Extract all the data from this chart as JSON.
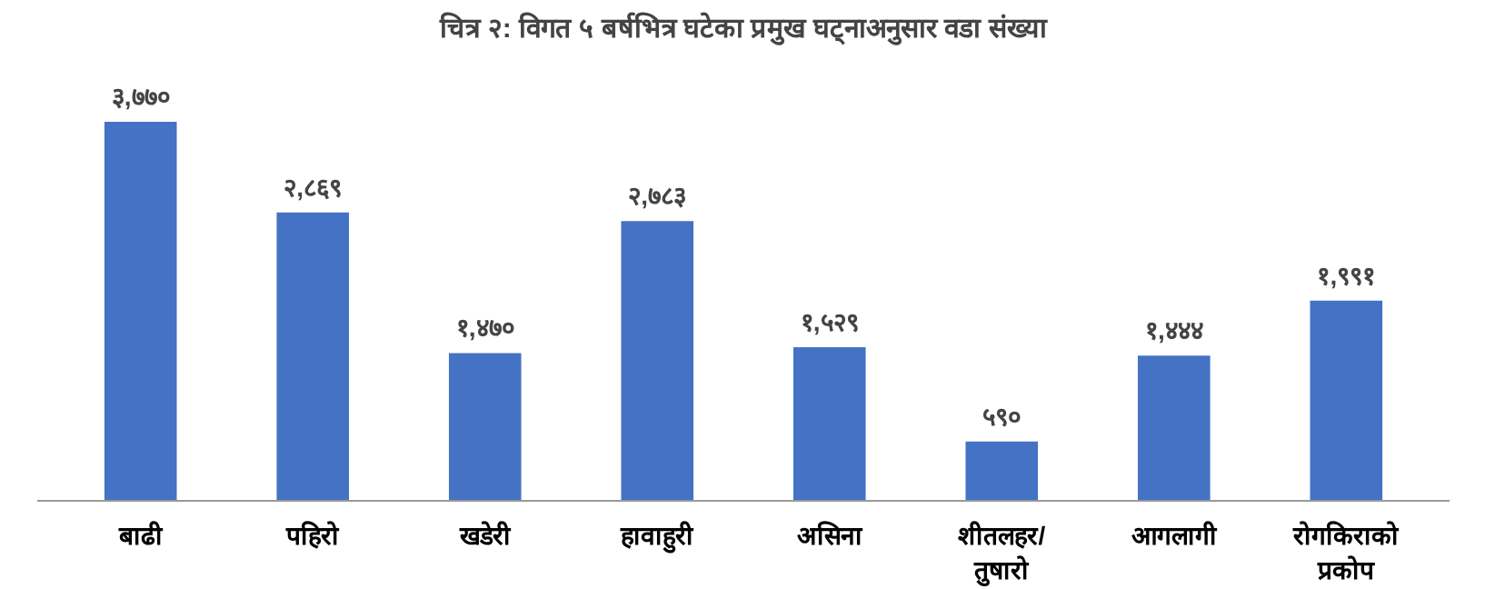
{
  "chart_data": {
    "type": "bar",
    "title": "चित्र २: विगत ५ बर्षभित्र घटेका प्रमुख घट्नाअनुसार वडा संख्या",
    "categories": [
      "बाढी",
      "पहिरो",
      "खडेरी",
      "हावाहुरी",
      "असिना",
      "शीतलहर/ तुषारो",
      "आगलागी",
      "रोगकिराको प्रकोप"
    ],
    "values": [
      3770,
      2869,
      1470,
      2783,
      1529,
      590,
      1444,
      1991
    ],
    "value_labels": [
      "३,७७०",
      "२,८६९",
      "१,४७०",
      "२,७८३",
      "१,५२९",
      "५९०",
      "१,४४४",
      "१,९९१"
    ],
    "color": "#4472c4"
  }
}
